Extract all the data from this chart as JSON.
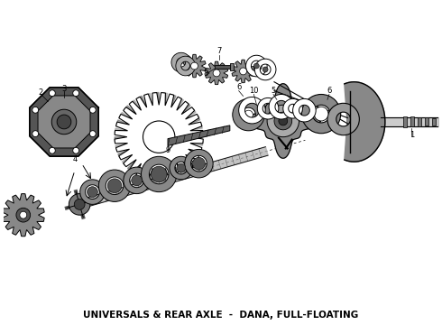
{
  "title": "UNIVERSALS & REAR AXLE  -  DANA, FULL-FLOATING",
  "bg_color": "#ffffff",
  "title_fontsize": 7.5,
  "fig_width": 4.9,
  "fig_height": 3.6,
  "dpi": 100,
  "line_color": "#111111",
  "gray_fill": "#888888",
  "dark_fill": "#333333"
}
